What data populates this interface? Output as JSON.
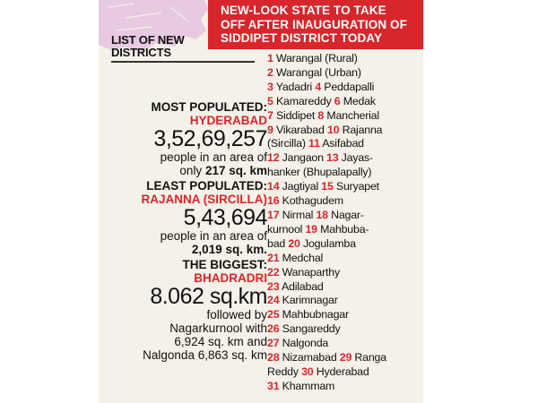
{
  "banner": {
    "lines": [
      "NEW-LOOK STATE TO TAKE",
      "OFF AFTER INAUGURATION OF",
      "SIDDIPET DISTRICT TODAY"
    ]
  },
  "list_heading": [
    "LIST OF NEW",
    "DISTRICTS"
  ],
  "most_populated": {
    "label": "MOST POPULATED:",
    "name": "HYDERABAD",
    "population": "3,52,69,257",
    "desc1": "people in an area of",
    "desc2_prefix": "only ",
    "area": "217 sq. km"
  },
  "least_populated": {
    "label": "LEAST POPULATED:",
    "name": "RAJANNA (SIRCILLA)",
    "population": "5,43,694",
    "desc1": "people in an area of",
    "area": "2,019",
    "area_suffix": " sq. km."
  },
  "biggest": {
    "label": "THE BIGGEST:",
    "name": "BHADRADRI",
    "area": "8.062 sq.km",
    "desc1": "followed by",
    "desc2": "Nagarkurnool with",
    "desc3": "6,924 sq. km and",
    "desc4": "Nalgonda 6,863 sq. km"
  },
  "district_rows": [
    [
      {
        "n": "1",
        "t": " Warangal (Rural)"
      }
    ],
    [
      {
        "n": "2",
        "t": " Warangal (Urban)"
      }
    ],
    [
      {
        "n": "3",
        "t": " Yadadri "
      },
      {
        "n": "4",
        "t": " Peddapalli"
      }
    ],
    [
      {
        "n": "5",
        "t": " Kamareddy "
      },
      {
        "n": "6",
        "t": " Medak"
      }
    ],
    [
      {
        "n": "7",
        "t": " Siddipet "
      },
      {
        "n": "8",
        "t": " Mancherial"
      }
    ],
    [
      {
        "n": "9",
        "t": " Vikarabad "
      },
      {
        "n": "10",
        "t": " Rajanna"
      }
    ],
    [
      {
        "n": "",
        "t": "(Sircilla) "
      },
      {
        "n": "11",
        "t": " Asifabad"
      }
    ],
    [
      {
        "n": "12",
        "t": " Jangaon "
      },
      {
        "n": "13",
        "t": " Jayas-"
      }
    ],
    [
      {
        "n": "",
        "t": "hanker (Bhupalapally)"
      }
    ],
    [
      {
        "n": "14",
        "t": " Jagtiyal "
      },
      {
        "n": "15",
        "t": " Suryapet"
      }
    ],
    [
      {
        "n": "16",
        "t": " Kothagudem"
      }
    ],
    [
      {
        "n": "17",
        "t": " Nirmal "
      },
      {
        "n": "18",
        "t": " Nagar-"
      }
    ],
    [
      {
        "n": "",
        "t": "kurnool "
      },
      {
        "n": "19",
        "t": " Mahbuba-"
      }
    ],
    [
      {
        "n": "",
        "t": "bad "
      },
      {
        "n": "20",
        "t": " Jogulamba"
      }
    ],
    [
      {
        "n": "21",
        "t": " Medchal"
      }
    ],
    [
      {
        "n": "22",
        "t": " Wanaparthy"
      }
    ],
    [
      {
        "n": "23",
        "t": " Adilabad"
      }
    ],
    [
      {
        "n": "24",
        "t": "  Karimnagar"
      }
    ],
    [
      {
        "n": "25",
        "t": " Mahbubnagar"
      }
    ],
    [
      {
        "n": "26",
        "t": " Sangareddy"
      }
    ],
    [
      {
        "n": "27",
        "t": " Nalgonda"
      }
    ],
    [
      {
        "n": "28",
        "t": " Nizamabad "
      },
      {
        "n": "29",
        "t": " Ranga"
      }
    ],
    [
      {
        "n": "",
        "t": "Reddy "
      },
      {
        "n": "30",
        "t": " Hyderabad"
      }
    ],
    [
      {
        "n": "31",
        "t": " Khammam"
      }
    ]
  ],
  "colors": {
    "accent": "#d7262c",
    "paper": "#f4f1e8",
    "map": "#e7c9e2"
  }
}
